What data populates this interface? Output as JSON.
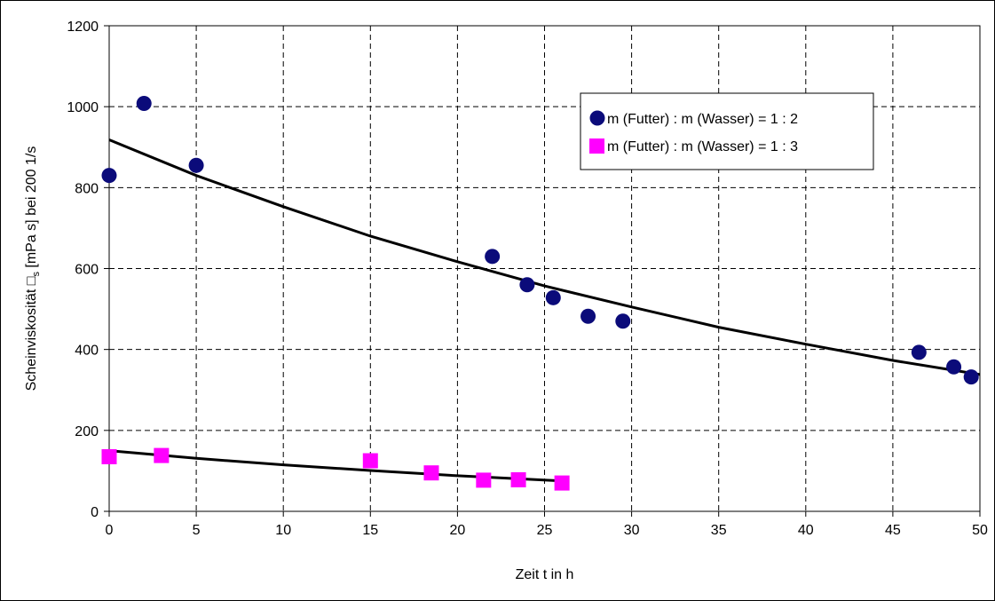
{
  "chart_data": {
    "type": "scatter",
    "xlabel": "Zeit t in h",
    "ylabel": "Scheinviskosität □s [mPa s] bei 200 1/s",
    "ylabel_main": "Scheinviskosität □",
    "ylabel_sub": "s",
    "ylabel_rest": " [mPa s] bei 200 1/s",
    "xlim": [
      0,
      50
    ],
    "ylim": [
      0,
      1200
    ],
    "x_ticks": [
      "0",
      "5",
      "10",
      "15",
      "20",
      "25",
      "30",
      "35",
      "40",
      "45",
      "50"
    ],
    "y_ticks": [
      "0",
      "200",
      "400",
      "600",
      "800",
      "1000",
      "1200"
    ],
    "grid": true,
    "legend_position": "top-right",
    "series": [
      {
        "name": "m (Futter) : m (Wasser) = 1 : 2",
        "marker": "circle",
        "color": "#0b0b7a",
        "points": [
          [
            0,
            830
          ],
          [
            2,
            1008
          ],
          [
            5,
            855
          ],
          [
            22,
            630
          ],
          [
            24,
            560
          ],
          [
            25.5,
            528
          ],
          [
            27.5,
            482
          ],
          [
            29.5,
            470
          ],
          [
            46.5,
            393
          ],
          [
            48.5,
            357
          ],
          [
            49.5,
            332
          ]
        ],
        "trend": [
          [
            0,
            918
          ],
          [
            5,
            830
          ],
          [
            10,
            753
          ],
          [
            15,
            680
          ],
          [
            20,
            617
          ],
          [
            25,
            557
          ],
          [
            30,
            505
          ],
          [
            35,
            455
          ],
          [
            40,
            413
          ],
          [
            45,
            373
          ],
          [
            50,
            338
          ]
        ]
      },
      {
        "name": "m (Futter) : m (Wasser) = 1 : 3",
        "marker": "square",
        "color": "#ff00ff",
        "points": [
          [
            0,
            135
          ],
          [
            3,
            138
          ],
          [
            15,
            125
          ],
          [
            18.5,
            95
          ],
          [
            21.5,
            77
          ],
          [
            23.5,
            78
          ],
          [
            26,
            70
          ]
        ],
        "trend": [
          [
            0,
            150
          ],
          [
            5,
            131
          ],
          [
            10,
            115
          ],
          [
            15,
            101
          ],
          [
            20,
            88
          ],
          [
            26,
            75
          ]
        ]
      }
    ]
  }
}
